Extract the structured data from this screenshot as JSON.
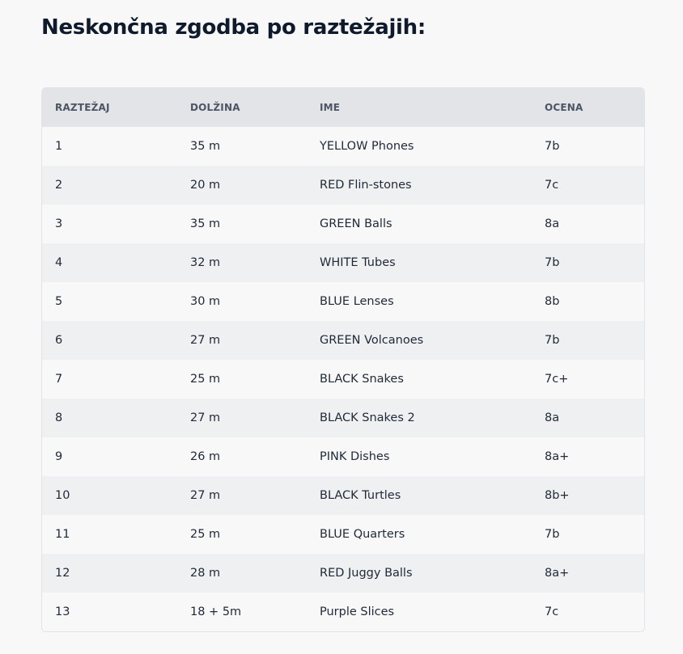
{
  "title": "Neskončna zgodba po raztežajih:",
  "table": {
    "headers": [
      "RAZTEŽAJ",
      "DOLŽINA",
      "IME",
      "OCENA"
    ],
    "rows": [
      [
        "1",
        "35 m",
        "YELLOW Phones",
        "7b"
      ],
      [
        "2",
        "20 m",
        "RED Flin-stones",
        "7c"
      ],
      [
        "3",
        "35 m",
        "GREEN Balls",
        "8a"
      ],
      [
        "4",
        "32 m",
        "WHITE Tubes",
        "7b"
      ],
      [
        "5",
        "30 m",
        "BLUE Lenses",
        "8b"
      ],
      [
        "6",
        "27 m",
        "GREEN Volcanoes",
        "7b"
      ],
      [
        "7",
        "25 m",
        "BLACK Snakes",
        "7c+"
      ],
      [
        "8",
        "27 m",
        "BLACK Snakes 2",
        "8a"
      ],
      [
        "9",
        "26 m",
        "PINK Dishes",
        "8a+"
      ],
      [
        "10",
        "27 m",
        "BLACK Turtles",
        "8b+"
      ],
      [
        "11",
        "25 m",
        "BLUE Quarters",
        "7b"
      ],
      [
        "12",
        "28 m",
        "RED Juggy Balls",
        "8a+"
      ],
      [
        "13",
        "18 + 5m",
        "Purple Slices",
        "7c"
      ]
    ]
  },
  "colors": {
    "background": "#f8f8f8",
    "header_row": "#e3e4e7",
    "striped_row": "#eff0f2",
    "title_text": "#0f1b2d"
  }
}
